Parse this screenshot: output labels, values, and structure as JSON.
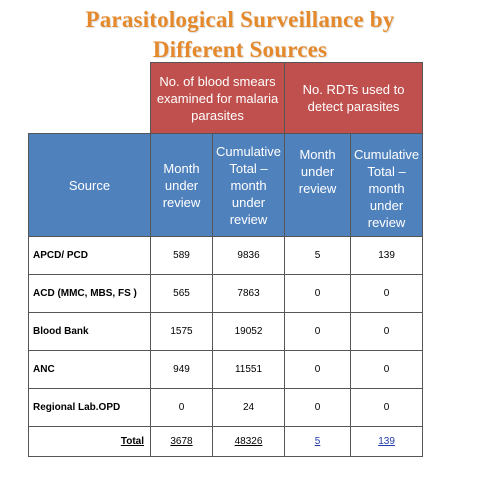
{
  "title": {
    "line1": "Parasitological Surveillance by",
    "line2": "Different Sources"
  },
  "table": {
    "group_headers": {
      "smears": "No. of blood smears examined for malaria parasites",
      "rdts": "No. RDTs used to detect parasites"
    },
    "column_headers": {
      "source": "Source",
      "smears_month": "Month under review",
      "smears_cumulative": "Cumulative Total – month under review",
      "rdts_month": "Month under review",
      "rdts_cumulative": "Cumulative Total – month under review"
    },
    "rows": [
      {
        "source": "APCD/ PCD",
        "smears_month": "589",
        "smears_cumulative": "9836",
        "rdts_month": "5",
        "rdts_cumulative": "139"
      },
      {
        "source": "ACD (MMC, MBS, FS )",
        "smears_month": "565",
        "smears_cumulative": "7863",
        "rdts_month": "0",
        "rdts_cumulative": "0"
      },
      {
        "source": "Blood Bank",
        "smears_month": "1575",
        "smears_cumulative": "19052",
        "rdts_month": "0",
        "rdts_cumulative": "0"
      },
      {
        "source": "ANC",
        "smears_month": "949",
        "smears_cumulative": "11551",
        "rdts_month": "0",
        "rdts_cumulative": "0"
      },
      {
        "source": "Regional Lab.OPD",
        "smears_month": "0",
        "smears_cumulative": "24",
        "rdts_month": "0",
        "rdts_cumulative": "0"
      }
    ],
    "total": {
      "label": "Total",
      "smears_month": "3678",
      "smears_cumulative": "48326",
      "rdts_month": "5",
      "rdts_cumulative": "139"
    }
  },
  "colors": {
    "title": "#e58a2c",
    "group_header_bg": "#c0504d",
    "column_header_bg": "#4f81bd",
    "rdt_total_text": "#1f3aa8"
  }
}
